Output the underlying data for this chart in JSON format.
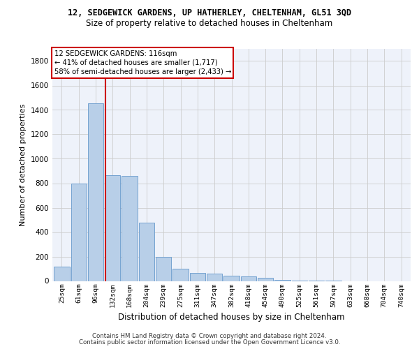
{
  "title": "12, SEDGEWICK GARDENS, UP HATHERLEY, CHELTENHAM, GL51 3QD",
  "subtitle": "Size of property relative to detached houses in Cheltenham",
  "xlabel": "Distribution of detached houses by size in Cheltenham",
  "ylabel": "Number of detached properties",
  "categories": [
    "25sqm",
    "61sqm",
    "96sqm",
    "132sqm",
    "168sqm",
    "204sqm",
    "239sqm",
    "275sqm",
    "311sqm",
    "347sqm",
    "382sqm",
    "418sqm",
    "454sqm",
    "490sqm",
    "525sqm",
    "561sqm",
    "597sqm",
    "633sqm",
    "668sqm",
    "704sqm",
    "740sqm"
  ],
  "values": [
    120,
    795,
    1455,
    865,
    860,
    475,
    200,
    100,
    65,
    60,
    45,
    35,
    25,
    10,
    5,
    5,
    5,
    0,
    0,
    0,
    0
  ],
  "bar_color": "#b8cfe8",
  "bar_edge_color": "#6699cc",
  "annotation_box_color": "#ffffff",
  "annotation_box_edge_color": "#cc0000",
  "vline_color": "#cc0000",
  "ylim": [
    0,
    1900
  ],
  "yticks": [
    0,
    200,
    400,
    600,
    800,
    1000,
    1200,
    1400,
    1600,
    1800
  ],
  "background_color": "#eef2fa",
  "grid_color": "#cccccc",
  "footer_line1": "Contains HM Land Registry data © Crown copyright and database right 2024.",
  "footer_line2": "Contains public sector information licensed under the Open Government Licence v3.0.",
  "prop_label": "12 SEDGEWICK GARDENS: 116sqm",
  "ann_line1": "← 41% of detached houses are smaller (1,717)",
  "ann_line2": "58% of semi-detached houses are larger (2,433) →"
}
